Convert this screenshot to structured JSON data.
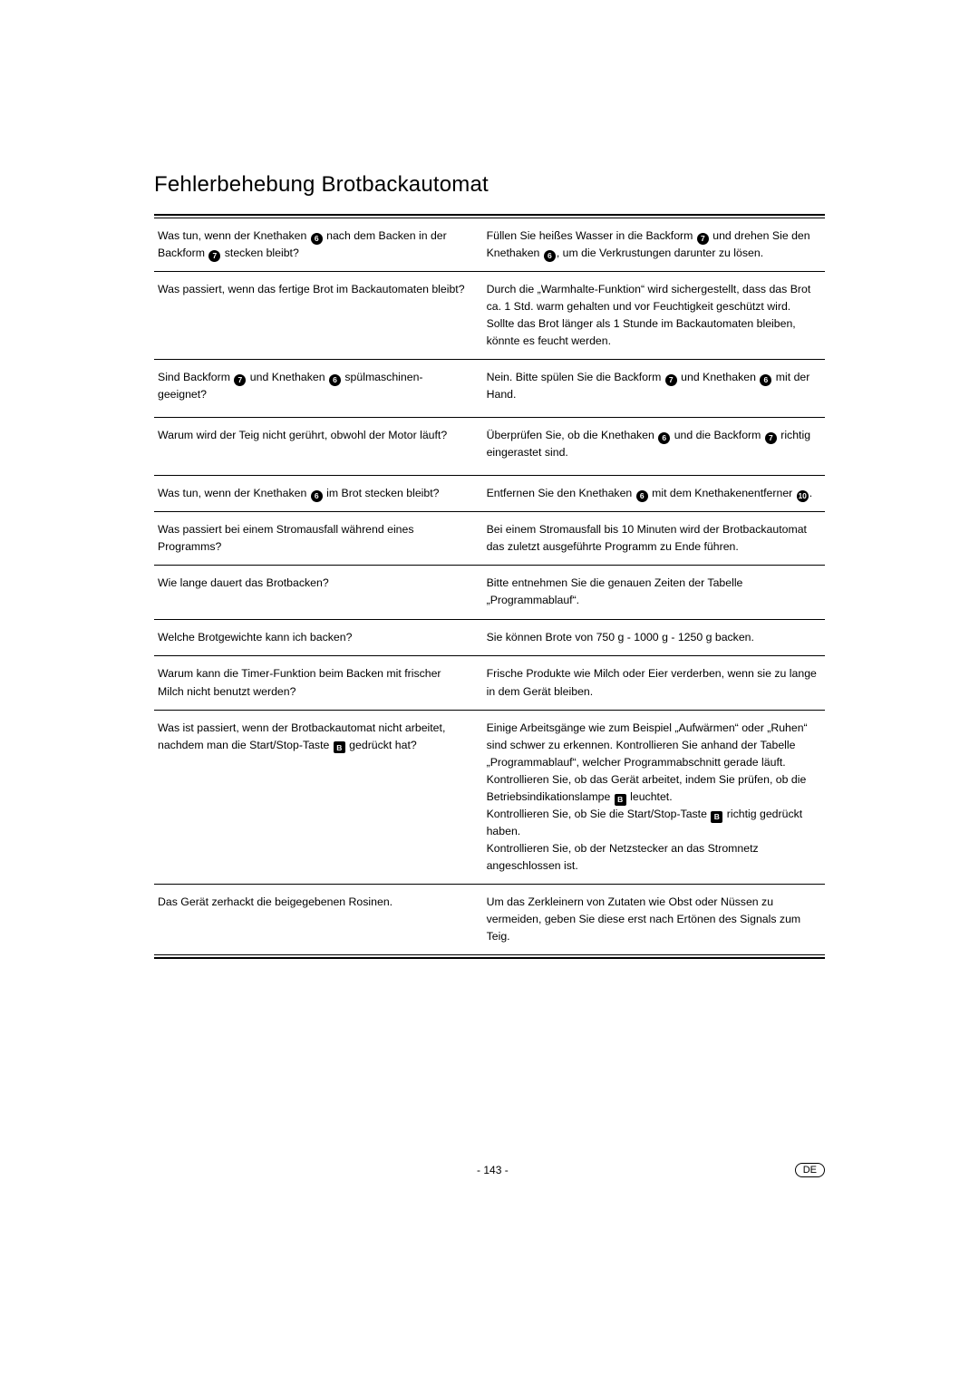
{
  "title": "Fehlerbehebung Brotbackautomat",
  "page_number": "- 143 -",
  "lang_badge": "DE",
  "refs": {
    "r6": "6",
    "r7": "7",
    "r10": "10",
    "rB": "B"
  },
  "rows": [
    {
      "q": [
        {
          "t": "Was tun, wenn der Knethaken "
        },
        {
          "ref": "r6"
        },
        {
          "t": " nach dem Backen in der Backform "
        },
        {
          "ref": "r7"
        },
        {
          "t": " stecken bleibt?"
        }
      ],
      "a": [
        {
          "t": "Füllen Sie heißes Wasser in die Backform "
        },
        {
          "ref": "r7"
        },
        {
          "t": " und drehen Sie den Knethaken "
        },
        {
          "ref": "r6"
        },
        {
          "t": ", um die Verkrustungen darunter zu lösen."
        }
      ]
    },
    {
      "q": [
        {
          "t": "Was passiert, wenn das fertige Brot im Backautomaten bleibt?"
        }
      ],
      "a": [
        {
          "t": "Durch die „Warmhalte-Funktion“ wird sichergestellt, dass das Brot ca. 1 Std. warm gehalten und vor Feuchtigkeit geschützt wird. Sollte das Brot länger als 1 Stunde im Backautomaten bleiben, könnte es feucht werden."
        }
      ]
    },
    {
      "q": [
        {
          "t": "Sind Backform "
        },
        {
          "ref": "r7"
        },
        {
          "t": " und Knethaken "
        },
        {
          "ref": "r6"
        },
        {
          "t": " spülmaschinen­geeignet?"
        }
      ],
      "a": [
        {
          "t": "Nein. Bitte spülen Sie die Backform "
        },
        {
          "ref": "r7"
        },
        {
          "t": " und Knethaken "
        },
        {
          "ref": "r6"
        },
        {
          "t": " mit der Hand."
        }
      ],
      "minh": 64
    },
    {
      "q": [
        {
          "t": "Warum wird der Teig nicht gerührt, obwohl der Motor läuft?"
        }
      ],
      "a": [
        {
          "t": "Überprüfen Sie, ob die Knethaken "
        },
        {
          "ref": "r6"
        },
        {
          "t": " und die Backform "
        },
        {
          "ref": "r7"
        },
        {
          "t": " richtig eingerastet sind."
        }
      ],
      "minh": 64
    },
    {
      "q": [
        {
          "t": "Was tun, wenn der Knethaken "
        },
        {
          "ref": "r6"
        },
        {
          "t": " im Brot stecken bleibt?"
        }
      ],
      "a": [
        {
          "t": "Entfernen Sie den Knethaken "
        },
        {
          "ref": "r6"
        },
        {
          "t": " mit dem Knethakenentferner "
        },
        {
          "ref": "r10"
        },
        {
          "t": "."
        }
      ]
    },
    {
      "q": [
        {
          "t": "Was passiert bei einem Stromausfall während eines Programms?"
        }
      ],
      "a": [
        {
          "t": "Bei einem Stromausfall bis 10 Minuten wird der Brotbackautomat das zuletzt ausgeführte Programm zu Ende führen."
        }
      ]
    },
    {
      "q": [
        {
          "t": "Wie lange dauert das Brotbacken?"
        }
      ],
      "a": [
        {
          "t": "Bitte entnehmen Sie die genauen Zeiten der Tabelle „Programmablauf“."
        }
      ],
      "minh": 60
    },
    {
      "q": [
        {
          "t": "Welche Brotgewichte kann ich backen?"
        }
      ],
      "a": [
        {
          "t": "Sie können Brote von 750 g - 1000 g - 1250 g backen."
        }
      ]
    },
    {
      "q": [
        {
          "t": "Warum kann die Timer-Funktion beim Backen mit frischer Milch nicht benutzt werden?"
        }
      ],
      "a": [
        {
          "t": "Frische Produkte wie Milch oder Eier verderben, wenn sie zu lange in dem Gerät bleiben."
        }
      ]
    },
    {
      "q": [
        {
          "t": "Was ist passiert, wenn der Brotbackautomat nicht arbeitet, nachdem man die Start/Stop-Taste "
        },
        {
          "refsq": "rB"
        },
        {
          "t": " gedrückt hat?"
        }
      ],
      "a": [
        {
          "t": "Einige Arbeitsgänge wie zum Beispiel „Aufwärmen“ oder „Ruhen“ sind schwer zu erkennen. Kontrollieren Sie anhand der Tabelle „Programmablauf“, welcher Programmabschnitt gerade läuft."
        },
        {
          "br": true
        },
        {
          "t": "Kontrollieren Sie, ob das Gerät arbeitet, indem Sie prüfen, ob die Betriebsindikationslampe "
        },
        {
          "refsq": "rB"
        },
        {
          "t": " leuchtet."
        },
        {
          "br": true
        },
        {
          "t": "Kontrollieren Sie, ob Sie die Start/Stop-Taste "
        },
        {
          "refsq": "rB"
        },
        {
          "t": " richtig gedrückt haben."
        },
        {
          "br": true
        },
        {
          "t": "Kontrollieren Sie, ob der Netzstecker an das Stromnetz angeschlossen ist."
        }
      ]
    },
    {
      "q": [
        {
          "t": "Das Gerät zerhackt die beigegebenen Rosinen."
        }
      ],
      "a": [
        {
          "t": "Um das Zerkleinern von Zutaten wie Obst oder Nüssen zu vermeiden, geben Sie diese erst nach Ertönen des Signals zum Teig."
        }
      ]
    }
  ]
}
